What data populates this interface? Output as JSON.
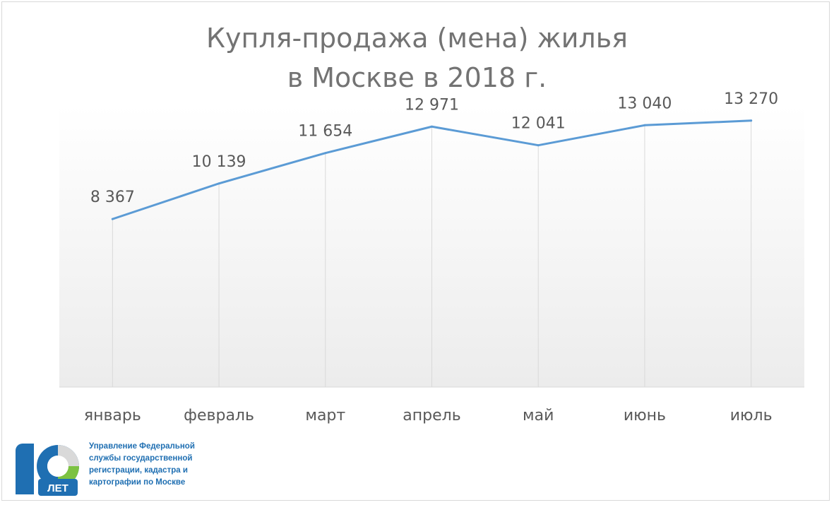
{
  "chart_data": {
    "type": "line",
    "title_lines": [
      "Купля-продажа (мена) жилья",
      "в Москве в 2018 г."
    ],
    "categories": [
      "январь",
      "февраль",
      "март",
      "апрель",
      "май",
      "июнь",
      "июль"
    ],
    "series": [
      {
        "values": [
          8367,
          10139,
          11654,
          12971,
          12041,
          13040,
          13270
        ],
        "labels": [
          "8 367",
          "10 139",
          "11 654",
          "12 971",
          "12 041",
          "13 040",
          "13 270"
        ]
      }
    ],
    "ylim": [
      0,
      14000
    ],
    "grid": "vertical",
    "colors": {
      "line": "#5b9bd5",
      "grid": "#d9d9d9",
      "text": "#595959"
    }
  },
  "logo": {
    "badge_text": "ЛЕТ",
    "org_lines": [
      "Управление Федеральной",
      "службы государственной",
      "регистрации, кадастра и",
      "картографии по Москве"
    ]
  }
}
